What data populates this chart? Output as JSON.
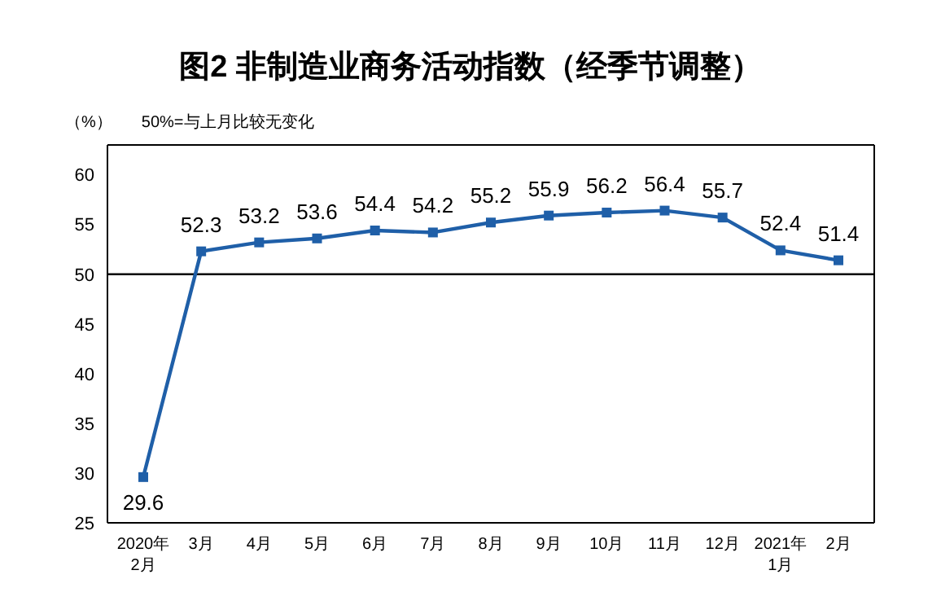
{
  "chart_data": {
    "type": "line",
    "title": "图2 非制造业商务活动指数（经季节调整）",
    "ylabel": "（%）",
    "annotations": [
      "50%=与上月比较无变化"
    ],
    "categories": [
      "2020年\n2月",
      "3月",
      "4月",
      "5月",
      "6月",
      "7月",
      "8月",
      "9月",
      "10月",
      "11月",
      "12月",
      "2021年\n1月",
      "2月"
    ],
    "series": [
      {
        "color": "#1f5fa8",
        "values": [
          29.6,
          52.3,
          53.2,
          53.6,
          54.4,
          54.2,
          55.2,
          55.9,
          56.2,
          56.4,
          55.7,
          52.4,
          51.4
        ]
      }
    ],
    "ylim": [
      25,
      63
    ],
    "yticks": [
      25,
      30,
      35,
      40,
      45,
      50,
      55,
      60
    ],
    "ref_lines": [
      {
        "axis": "y",
        "value": 50,
        "color": "#000000"
      }
    ],
    "data_labels": true,
    "marker": "square",
    "grid": false
  }
}
